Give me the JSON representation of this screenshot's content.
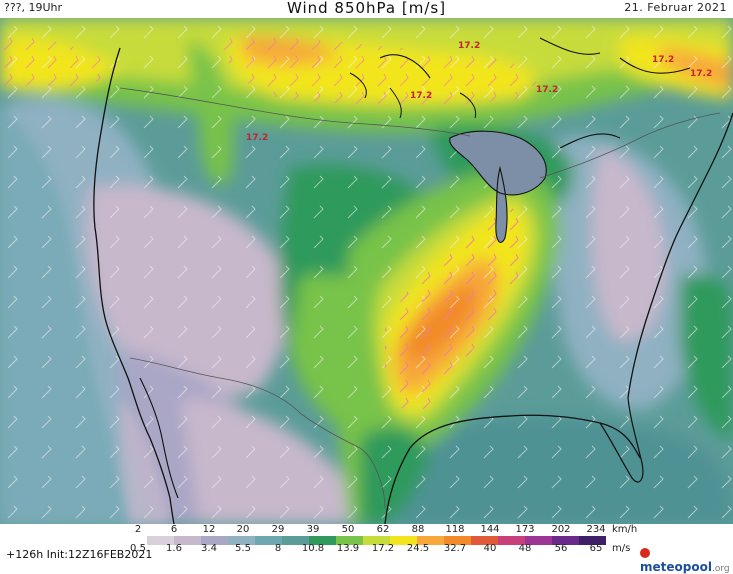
{
  "header": {
    "left": "???, 19Uhr",
    "title": "Wind 850hPa [m/s]",
    "right": "21. Februar 2021"
  },
  "map": {
    "contour_labels": [
      "17.2",
      "17.2",
      "17.2",
      "17.2",
      "17.2",
      "17.2"
    ],
    "colors": {
      "water": "#7d8fa6",
      "calm": "#c8b8cc",
      "light": "#8fb1c2",
      "teal": "#5b9c98",
      "green": "#2f9a5c",
      "lightgreen": "#78c34a",
      "yellowgreen": "#c7dc3a",
      "yellow": "#f2e51e",
      "orange": "#f7a83a",
      "darkorange": "#f28a2c",
      "coast": "#111111",
      "border": "#555555"
    }
  },
  "legend": {
    "kmh_values": [
      "2",
      "6",
      "12",
      "20",
      "29",
      "39",
      "50",
      "62",
      "88",
      "118",
      "144",
      "173",
      "202",
      "234"
    ],
    "ms_values": [
      "0.5",
      "1.6",
      "3.4",
      "5.5",
      "8",
      "10.8",
      "13.9",
      "17.2",
      "24.5",
      "32.7",
      "40",
      "48",
      "56",
      "65"
    ],
    "unit_kmh": "km/h",
    "unit_ms": "m/s",
    "colors": [
      "#ffffff",
      "#d9d0dc",
      "#c8b8cc",
      "#a9a6c6",
      "#8fb1c2",
      "#6ea7b1",
      "#5b9c98",
      "#2f9a5c",
      "#78c34a",
      "#c7dc3a",
      "#f2e51e",
      "#f7a83a",
      "#f28a2c",
      "#e05a3a",
      "#c7407a",
      "#9c3596",
      "#6b2a8a",
      "#3f1f6a"
    ]
  },
  "footer": {
    "init": "+126h Init:12Z16FEB2021",
    "logo": "meteopool",
    "logo_suffix": ".org"
  }
}
